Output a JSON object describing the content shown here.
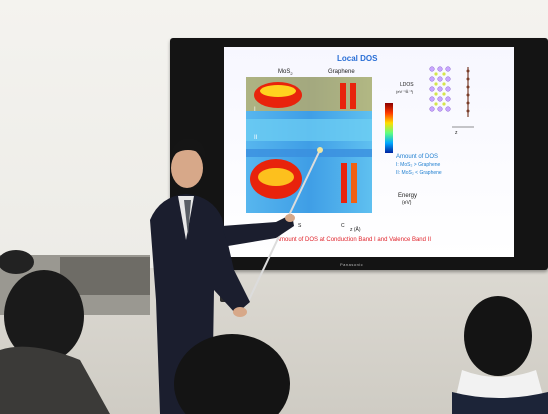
{
  "slide": {
    "title": "Local DOS",
    "mos2_label": "MoS",
    "graphene_label": "Graphene",
    "ldos_label": "LDOS",
    "ldos_unit": "(eV⁻¹Å⁻³)",
    "amount_title": "Amount of DOS",
    "amount_i": "I: MoS₂ > Graphene",
    "amount_ii": "II: MoS₂ < Graphene",
    "energy_label": "Energy",
    "energy_unit": "(eV)",
    "z_label": "z (Å)",
    "s_label": "S",
    "c_label": "C",
    "struct_z_label": "z",
    "bottom_caption": "Amount of DOS at Conduction Band I and Valence Band II"
  },
  "tv": {
    "brand": "Panasonic"
  },
  "colors": {
    "slide_title": "#2a6fd6",
    "caption_red": "#e0242c",
    "heatmap_hot": "#e8230c",
    "heatmap_cold": "#4aa8e8"
  }
}
